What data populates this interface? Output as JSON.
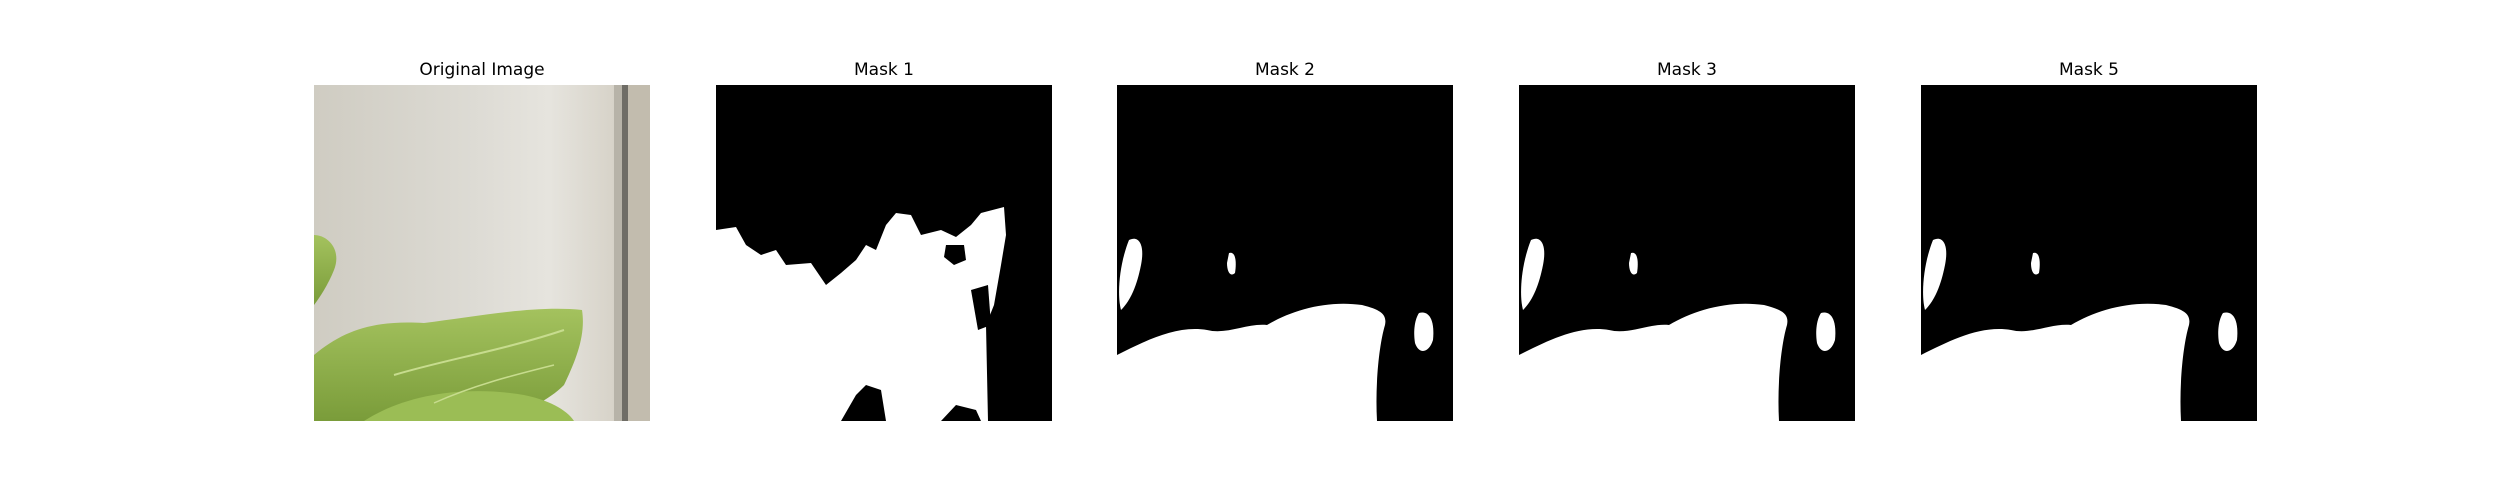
{
  "figure": {
    "background_color": "#ffffff",
    "panels": [
      {
        "title": "Original Image",
        "kind": "photo"
      },
      {
        "title": "Mask 1",
        "kind": "mask"
      },
      {
        "title": "Mask 2",
        "kind": "mask"
      },
      {
        "title": "Mask 3",
        "kind": "mask"
      },
      {
        "title": "Mask 5",
        "kind": "mask"
      }
    ]
  },
  "colors": {
    "mask_foreground": "#ffffff",
    "mask_background": "#000000",
    "photo_wall": "#d9d7cf",
    "photo_leaf": "#8fb04a",
    "photo_frame": "#9a9a96"
  }
}
